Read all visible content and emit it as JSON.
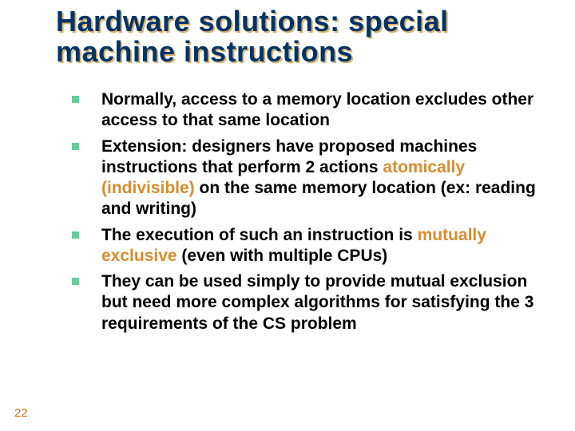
{
  "title": "Hardware solutions: special machine instructions",
  "title_color": "#003366",
  "title_shadow_color": "#d9b36c",
  "title_fontsize": 36,
  "bullet_marker_color": "#66cc99",
  "highlight_color": "#d98c2e",
  "body_fontsize": 21,
  "bullets": [
    {
      "segments": [
        {
          "text": "Normally, access to a memory location excludes other access to that same location",
          "hl": false
        }
      ]
    },
    {
      "segments": [
        {
          "text": "Extension: designers have proposed machines instructions that perform 2 actions ",
          "hl": false
        },
        {
          "text": "atomically (indivisible)",
          "hl": true
        },
        {
          "text": " on the same memory location (ex: reading and writing)",
          "hl": false
        }
      ]
    },
    {
      "segments": [
        {
          "text": "The execution of such an instruction is ",
          "hl": false
        },
        {
          "text": "mutually exclusive",
          "hl": true
        },
        {
          "text": " (even with multiple CPUs)",
          "hl": false
        }
      ]
    },
    {
      "segments": [
        {
          "text": "They can be used simply to provide mutual exclusion but need more complex algorithms for satisfying the 3 requirements of the CS problem",
          "hl": false
        }
      ]
    }
  ],
  "page_number": "22",
  "page_number_color": "#c87820",
  "background_color": "#ffffff"
}
